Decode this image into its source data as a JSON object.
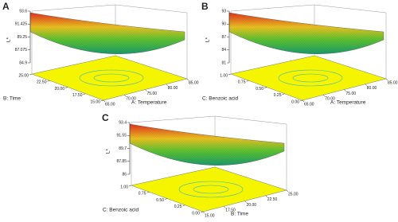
{
  "chart_data": [
    {
      "type": "surface",
      "panel_label": "A",
      "zlabel": "L*",
      "ylabel": "B: Time",
      "ylim": [
        15,
        25
      ],
      "yticks": [
        {
          "value": 25,
          "label": "25.00"
        },
        {
          "value": 22.5,
          "label": "22.50"
        },
        {
          "value": 20,
          "label": "20.00"
        },
        {
          "value": 17.5,
          "label": "17.50"
        },
        {
          "value": 15,
          "label": "15.00"
        }
      ],
      "xlabel": "A: Temperature",
      "xlim": [
        65,
        85
      ],
      "xticks": [
        {
          "value": 65,
          "label": "65.00"
        },
        {
          "value": 70,
          "label": "70.00"
        },
        {
          "value": 75,
          "label": "75.00"
        },
        {
          "value": 80,
          "label": "80.00"
        },
        {
          "value": 85,
          "label": "85.00"
        }
      ],
      "zlim": [
        84.9,
        93.6
      ],
      "zticks": [
        93.6,
        91.425,
        89.25,
        87.075,
        84.9
      ]
    },
    {
      "type": "surface",
      "panel_label": "B",
      "zlabel": "L*",
      "ylabel": "C: Benzoic acid",
      "ylim": [
        0,
        1
      ],
      "yticks": [
        {
          "value": 1,
          "label": "1.00"
        },
        {
          "value": 0.75,
          "label": "0.75"
        },
        {
          "value": 0.5,
          "label": "0.50"
        },
        {
          "value": 0.25,
          "label": "0.25"
        },
        {
          "value": 0,
          "label": "0.00"
        }
      ],
      "xlabel": "A: Temperature",
      "xlim": [
        65,
        85
      ],
      "xticks": [
        {
          "value": 65,
          "label": "65.00"
        },
        {
          "value": 70,
          "label": "70.00"
        },
        {
          "value": 75,
          "label": "75.00"
        },
        {
          "value": 80,
          "label": "80.00"
        },
        {
          "value": 85,
          "label": "85.00"
        }
      ],
      "zlim": [
        81,
        93
      ],
      "zticks": [
        93,
        90,
        87,
        84,
        81
      ]
    },
    {
      "type": "surface",
      "panel_label": "C",
      "zlabel": "L*",
      "ylabel": "C: Benzoic acid",
      "ylim": [
        0,
        1
      ],
      "yticks": [
        {
          "value": 1,
          "label": "1.00"
        },
        {
          "value": 0.75,
          "label": "0.75"
        },
        {
          "value": 0.5,
          "label": "0.50"
        },
        {
          "value": 0.25,
          "label": "0.25"
        },
        {
          "value": 0,
          "label": "0.00"
        }
      ],
      "xlabel": "B: Time",
      "xlim": [
        15,
        25
      ],
      "xticks": [
        {
          "value": 15,
          "label": "15.00"
        },
        {
          "value": 17.5,
          "label": "17.50"
        },
        {
          "value": 20,
          "label": "20.00"
        },
        {
          "value": 22.5,
          "label": "22.50"
        },
        {
          "value": 25,
          "label": "25.00"
        }
      ],
      "zlim": [
        86,
        93.4
      ],
      "zticks": [
        93.4,
        91.55,
        89.7,
        87.85,
        86
      ]
    }
  ]
}
